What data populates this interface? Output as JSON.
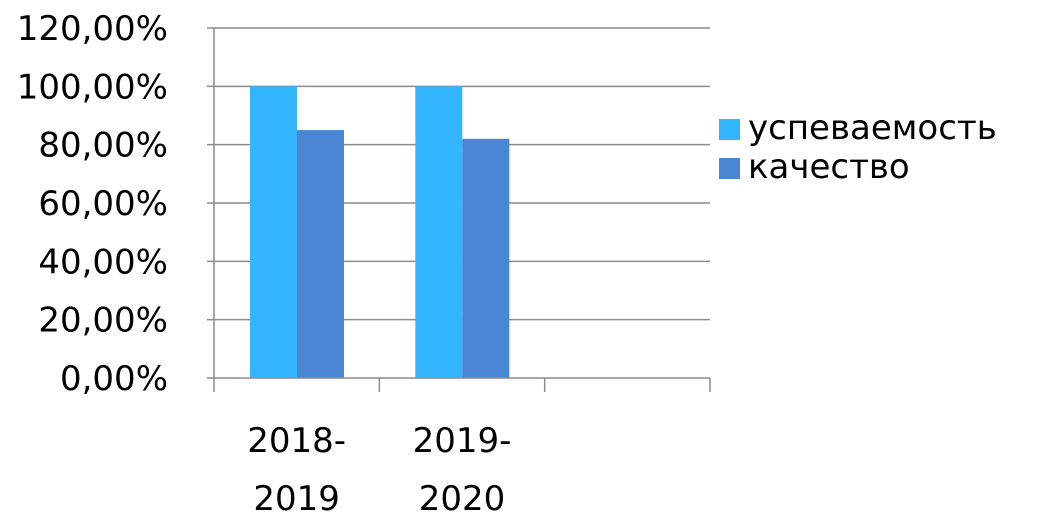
{
  "chart_data": {
    "type": "bar",
    "categories": [
      {
        "line1": "2018-",
        "line2": "2019"
      },
      {
        "line1": "2019-",
        "line2": "2020"
      },
      {
        "line1": "",
        "line2": ""
      }
    ],
    "series": [
      {
        "name": "успеваемость",
        "color": "#33B5FF",
        "values": [
          100,
          100,
          null
        ]
      },
      {
        "name": "качество",
        "color": "#4A86D4",
        "values": [
          85,
          82,
          null
        ]
      }
    ],
    "y_ticks": [
      "0,00%",
      "20,00%",
      "40,00%",
      "60,00%",
      "80,00%",
      "100,00%",
      "120,00%"
    ],
    "ylim": [
      0,
      120
    ],
    "y_unit": "percent",
    "grid": true,
    "legend_position": "right",
    "title": "",
    "xlabel": "",
    "ylabel": ""
  }
}
